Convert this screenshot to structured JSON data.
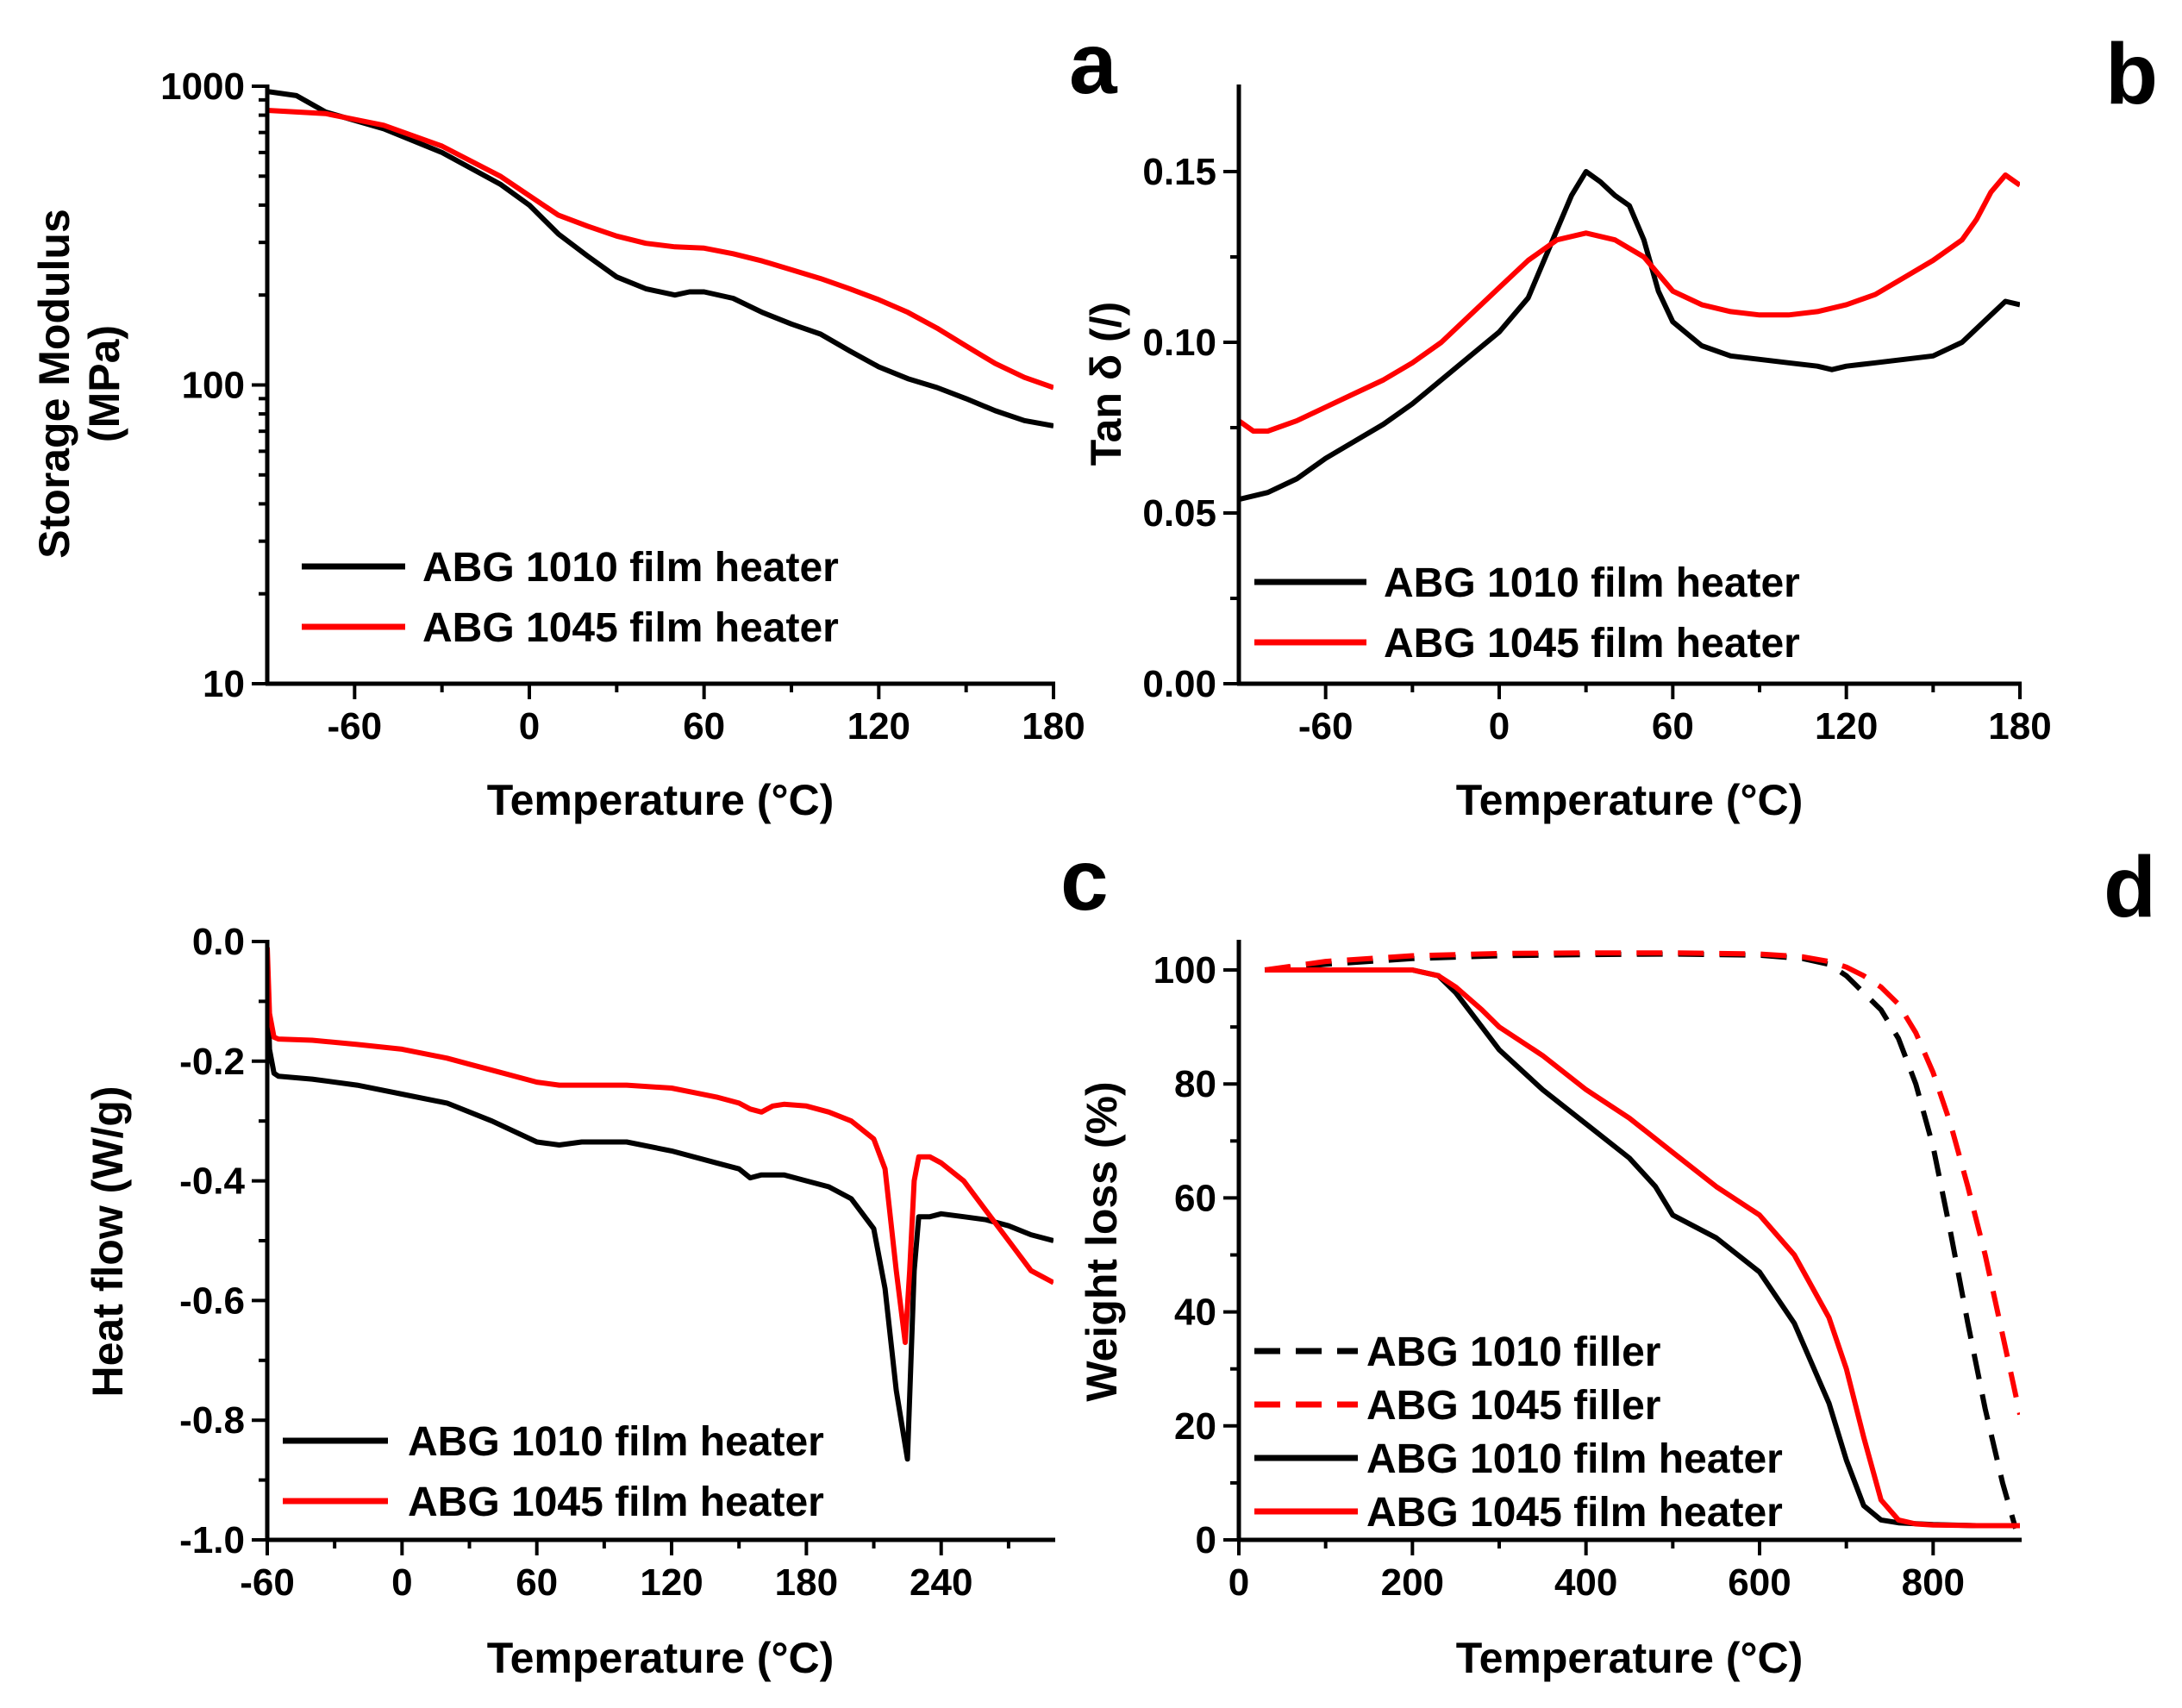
{
  "colors": {
    "black": "#000000",
    "red": "#ff0000"
  },
  "chart_data": [
    {
      "type": "line",
      "panel_label": "a",
      "title": "",
      "xlabel": "Temperature (°C)",
      "ylabel_line1": "Storage Modulus",
      "ylabel_line2": "(MPa)",
      "yscale": "log",
      "xlim": [
        -90,
        180
      ],
      "ylim": [
        10,
        1000
      ],
      "xticks": [
        -60,
        0,
        60,
        120,
        180
      ],
      "xtick_labels": [
        "-60",
        "0",
        "60",
        "120",
        "180"
      ],
      "yticks": [
        10,
        100,
        1000
      ],
      "ytick_labels": [
        "10",
        "100",
        "1000"
      ],
      "legend": "bottom-left",
      "series": [
        {
          "name": "ABG 1010 film heater",
          "color": "#000000",
          "dash": "solid",
          "x": [
            -90,
            -80,
            -70,
            -50,
            -30,
            -10,
            0,
            10,
            20,
            30,
            40,
            50,
            55,
            60,
            70,
            80,
            90,
            100,
            110,
            120,
            130,
            140,
            150,
            160,
            170,
            180
          ],
          "y": [
            960,
            930,
            820,
            720,
            600,
            470,
            400,
            320,
            270,
            230,
            210,
            200,
            205,
            205,
            195,
            175,
            160,
            148,
            130,
            115,
            105,
            98,
            90,
            82,
            76,
            73
          ]
        },
        {
          "name": "ABG 1045 film heater",
          "color": "#ff0000",
          "dash": "solid",
          "x": [
            -90,
            -70,
            -50,
            -30,
            -10,
            0,
            10,
            20,
            30,
            40,
            50,
            60,
            70,
            80,
            90,
            100,
            110,
            120,
            130,
            140,
            150,
            160,
            170,
            180
          ],
          "y": [
            830,
            810,
            740,
            630,
            500,
            430,
            370,
            340,
            315,
            298,
            290,
            287,
            275,
            260,
            243,
            227,
            210,
            193,
            175,
            155,
            135,
            118,
            106,
            98
          ]
        }
      ]
    },
    {
      "type": "line",
      "panel_label": "b",
      "title": "",
      "xlabel": "Temperature (°C)",
      "ylabel": "Tan δ (/)",
      "xlim": [
        -90,
        180
      ],
      "ylim": [
        0,
        0.175
      ],
      "xticks": [
        -60,
        0,
        60,
        120,
        180
      ],
      "xtick_labels": [
        "-60",
        "0",
        "60",
        "120",
        "180"
      ],
      "yticks": [
        0,
        0.05,
        0.1,
        0.15
      ],
      "ytick_labels": [
        "0.00",
        "0.05",
        "0.10",
        "0.15"
      ],
      "legend": "bottom-left",
      "series": [
        {
          "name": "ABG 1010 film heater",
          "color": "#000000",
          "dash": "solid",
          "x": [
            -90,
            -80,
            -70,
            -60,
            -50,
            -40,
            -30,
            -20,
            -10,
            0,
            10,
            20,
            25,
            30,
            35,
            40,
            45,
            50,
            55,
            60,
            70,
            80,
            90,
            100,
            110,
            115,
            120,
            130,
            140,
            150,
            160,
            170,
            175,
            180
          ],
          "y": [
            0.054,
            0.056,
            0.06,
            0.066,
            0.071,
            0.076,
            0.082,
            0.089,
            0.096,
            0.103,
            0.113,
            0.133,
            0.143,
            0.15,
            0.147,
            0.143,
            0.14,
            0.13,
            0.115,
            0.106,
            0.099,
            0.096,
            0.095,
            0.094,
            0.093,
            0.092,
            0.093,
            0.094,
            0.095,
            0.096,
            0.1,
            0.108,
            0.112,
            0.111
          ]
        },
        {
          "name": "ABG 1045 film heater",
          "color": "#ff0000",
          "dash": "solid",
          "x": [
            -90,
            -85,
            -80,
            -70,
            -60,
            -50,
            -40,
            -30,
            -20,
            -10,
            0,
            10,
            20,
            30,
            40,
            50,
            60,
            70,
            80,
            90,
            100,
            110,
            120,
            130,
            140,
            150,
            160,
            165,
            170,
            175,
            180
          ],
          "y": [
            0.077,
            0.074,
            0.074,
            0.077,
            0.081,
            0.085,
            0.089,
            0.094,
            0.1,
            0.108,
            0.116,
            0.124,
            0.13,
            0.132,
            0.13,
            0.125,
            0.115,
            0.111,
            0.109,
            0.108,
            0.108,
            0.109,
            0.111,
            0.114,
            0.119,
            0.124,
            0.13,
            0.136,
            0.144,
            0.149,
            0.146
          ]
        }
      ]
    },
    {
      "type": "line",
      "panel_label": "c",
      "title": "",
      "xlabel": "Temperature (°C)",
      "ylabel": "Heat flow (W/g)",
      "xlim": [
        -60,
        290
      ],
      "ylim": [
        -1.0,
        0.0
      ],
      "xticks": [
        -60,
        0,
        60,
        120,
        180,
        240
      ],
      "xtick_labels": [
        "-60",
        "0",
        "60",
        "120",
        "180",
        "240"
      ],
      "yticks": [
        -1.0,
        -0.8,
        -0.6,
        -0.4,
        -0.2,
        0.0
      ],
      "ytick_labels": [
        "-1.0",
        "-0.8",
        "-0.6",
        "-0.4",
        "-0.2",
        "0.0"
      ],
      "legend": "bottom-left",
      "series": [
        {
          "name": "ABG 1010 film heater",
          "color": "#000000",
          "dash": "solid",
          "x": [
            -60,
            -59,
            -57,
            -55,
            -40,
            -20,
            0,
            20,
            40,
            60,
            70,
            80,
            100,
            120,
            140,
            150,
            155,
            160,
            170,
            180,
            190,
            200,
            210,
            215,
            220,
            225,
            228,
            230,
            235,
            240,
            250,
            260,
            270,
            280,
            290
          ],
          "y": [
            -0.04,
            -0.18,
            -0.22,
            -0.225,
            -0.23,
            -0.24,
            -0.255,
            -0.27,
            -0.3,
            -0.335,
            -0.34,
            -0.335,
            -0.335,
            -0.35,
            -0.37,
            -0.38,
            -0.395,
            -0.39,
            -0.39,
            -0.4,
            -0.41,
            -0.43,
            -0.48,
            -0.58,
            -0.75,
            -0.865,
            -0.55,
            -0.46,
            -0.46,
            -0.455,
            -0.46,
            -0.465,
            -0.475,
            -0.49,
            -0.5
          ]
        },
        {
          "name": "ABG 1045 film heater",
          "color": "#ff0000",
          "dash": "solid",
          "x": [
            -60,
            -59,
            -57,
            -55,
            -40,
            -20,
            0,
            20,
            30,
            40,
            60,
            70,
            80,
            100,
            120,
            140,
            150,
            155,
            160,
            165,
            170,
            180,
            190,
            200,
            210,
            215,
            220,
            224,
            226,
            228,
            230,
            235,
            240,
            250,
            260,
            270,
            280,
            290
          ],
          "y": [
            -0.01,
            -0.12,
            -0.16,
            -0.163,
            -0.165,
            -0.172,
            -0.18,
            -0.195,
            -0.205,
            -0.215,
            -0.235,
            -0.24,
            -0.24,
            -0.24,
            -0.245,
            -0.26,
            -0.27,
            -0.28,
            -0.285,
            -0.275,
            -0.272,
            -0.275,
            -0.285,
            -0.3,
            -0.33,
            -0.38,
            -0.55,
            -0.67,
            -0.55,
            -0.4,
            -0.36,
            -0.36,
            -0.37,
            -0.4,
            -0.45,
            -0.5,
            -0.55,
            -0.57
          ]
        }
      ]
    },
    {
      "type": "line",
      "panel_label": "d",
      "title": "",
      "xlabel": "Temperature (°C)",
      "ylabel": "Weight loss (%)",
      "xlim": [
        0,
        900
      ],
      "ylim": [
        0,
        105
      ],
      "xticks": [
        0,
        200,
        400,
        600,
        800
      ],
      "xtick_labels": [
        "0",
        "200",
        "400",
        "600",
        "800"
      ],
      "yticks": [
        0,
        20,
        40,
        60,
        80,
        100
      ],
      "ytick_labels": [
        "0",
        "20",
        "40",
        "60",
        "80",
        "100"
      ],
      "legend": "bottom-left",
      "series": [
        {
          "name": "ABG 1010 filler",
          "color": "#000000",
          "dash": "dashed",
          "x": [
            30,
            100,
            200,
            300,
            400,
            500,
            600,
            650,
            680,
            700,
            720,
            740,
            760,
            780,
            800,
            820,
            840,
            860,
            880,
            895
          ],
          "y": [
            100,
            101,
            102,
            102.5,
            102.7,
            102.8,
            102.6,
            102,
            101,
            99,
            96,
            93,
            88,
            80,
            69,
            54,
            38,
            23,
            10,
            2
          ]
        },
        {
          "name": "ABG 1045 filler",
          "color": "#ff0000",
          "dash": "dashed",
          "x": [
            30,
            100,
            200,
            300,
            400,
            500,
            600,
            650,
            680,
            700,
            720,
            740,
            760,
            780,
            800,
            820,
            840,
            860,
            880,
            900
          ],
          "y": [
            100,
            101.5,
            102.5,
            102.9,
            103,
            103,
            102.8,
            102.3,
            101.5,
            100.5,
            99,
            97,
            94,
            89,
            82,
            73,
            62,
            50,
            36,
            22
          ]
        },
        {
          "name": "ABG 1010 film heater",
          "color": "#000000",
          "dash": "solid",
          "x": [
            30,
            100,
            200,
            230,
            250,
            280,
            300,
            350,
            400,
            450,
            480,
            500,
            550,
            600,
            640,
            680,
            700,
            720,
            740,
            760,
            800,
            850,
            900
          ],
          "y": [
            100,
            100,
            100,
            99,
            96,
            90,
            86,
            79,
            73,
            67,
            62,
            57,
            53,
            47,
            38,
            24,
            14,
            6,
            3.5,
            3,
            2.7,
            2.5,
            2.5
          ]
        },
        {
          "name": "ABG 1045 film heater",
          "color": "#ff0000",
          "dash": "solid",
          "x": [
            30,
            100,
            200,
            230,
            250,
            280,
            300,
            350,
            400,
            450,
            500,
            550,
            600,
            640,
            680,
            700,
            720,
            740,
            760,
            780,
            800,
            850,
            900
          ],
          "y": [
            100,
            100,
            100,
            99,
            97,
            93,
            90,
            85,
            79,
            74,
            68,
            62,
            57,
            50,
            39,
            30,
            18,
            7,
            3.5,
            2.8,
            2.6,
            2.5,
            2.5
          ]
        }
      ]
    }
  ]
}
